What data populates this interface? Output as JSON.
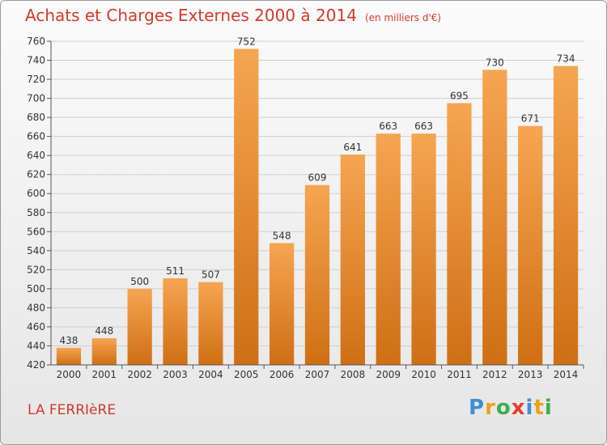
{
  "header": {
    "title": "Achats et Charges Externes 2000 à 2014",
    "unit": "(en milliers d'€)"
  },
  "footer": {
    "place": "LA FERRIèRE",
    "logo": [
      "P",
      "r",
      "o",
      "x",
      "i",
      "t",
      "i"
    ],
    "logo_colors": [
      "#3d8fd6",
      "#e9a21a",
      "#3dae49",
      "#e63c2f",
      "#3d8fd6",
      "#e9a21a",
      "#3dae49"
    ]
  },
  "colors": {
    "bar_top": "#f6a552",
    "bar_bottom": "#cf6f14",
    "title": "#d23a2a"
  },
  "chart_data": {
    "type": "bar",
    "title": "Achats et Charges Externes 2000 à 2014",
    "xlabel": "",
    "ylabel": "",
    "categories": [
      "2000",
      "2001",
      "2002",
      "2003",
      "2004",
      "2005",
      "2006",
      "2007",
      "2008",
      "2009",
      "2010",
      "2011",
      "2012",
      "2013",
      "2014"
    ],
    "values": [
      438,
      448,
      500,
      511,
      507,
      752,
      548,
      609,
      641,
      663,
      663,
      695,
      730,
      671,
      734
    ],
    "ylim": [
      420,
      760
    ],
    "yticks": [
      420,
      440,
      460,
      480,
      500,
      520,
      540,
      560,
      580,
      600,
      620,
      640,
      660,
      680,
      700,
      720,
      740,
      760
    ],
    "grid": true,
    "legend": "none",
    "data_labels": true
  }
}
